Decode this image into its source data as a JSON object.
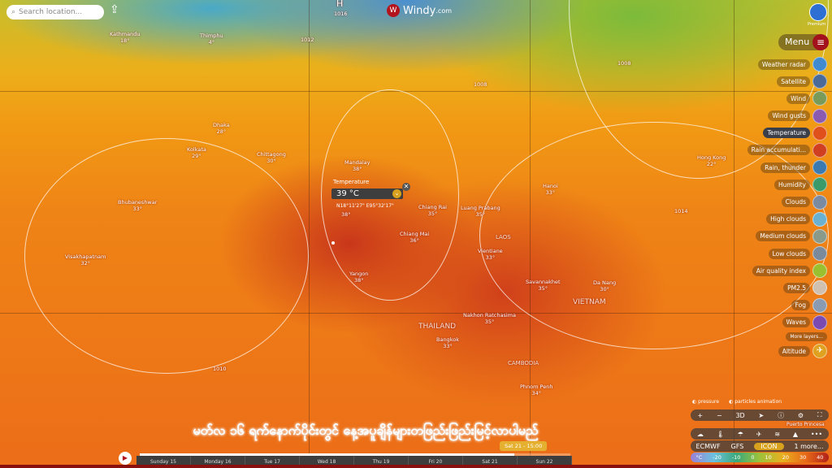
{
  "search": {
    "placeholder": "Search location..."
  },
  "logo": {
    "name": "Windy",
    "suffix": ".com"
  },
  "account": {
    "badge": "Premium"
  },
  "menu": {
    "label": "Menu"
  },
  "layers": [
    {
      "label": "Weather radar",
      "color": "#3f8ad0"
    },
    {
      "label": "Satellite",
      "color": "#4a6a9a"
    },
    {
      "label": "Wind",
      "color": "#7a9a5a"
    },
    {
      "label": "Wind gusts",
      "color": "#8a5ab0"
    },
    {
      "label": "Temperature",
      "color": "#e0501a",
      "active": true
    },
    {
      "label": "Rain accumulati...",
      "color": "#d04020"
    },
    {
      "label": "Rain, thunder",
      "color": "#3a7ab0"
    },
    {
      "label": "Humidity",
      "color": "#3a9a6a"
    },
    {
      "label": "Clouds",
      "color": "#7a8aa0"
    },
    {
      "label": "High clouds",
      "color": "#6ab0d0"
    },
    {
      "label": "Medium clouds",
      "color": "#8a9a8a"
    },
    {
      "label": "Low clouds",
      "color": "#7a8a9a"
    },
    {
      "label": "Air quality index",
      "color": "#9ac030"
    },
    {
      "label": "PM2.5",
      "color": "#d0c0b0"
    },
    {
      "label": "Fog",
      "color": "#8a9ab0"
    },
    {
      "label": "Waves",
      "color": "#7a4ab0"
    }
  ],
  "more_layers": "More layers...",
  "altitude": "Altitude",
  "popup": {
    "label": "Temperature",
    "value": "39 °C",
    "coords": "N18°11'27\" E95°32'17\"",
    "nearby": "38°"
  },
  "pressure_labels": [
    "1016",
    "1012",
    "1008",
    "1010",
    "1014",
    "1008"
  ],
  "high_label": "H",
  "cities": [
    {
      "name": "Thimphu",
      "temp": "4°"
    },
    {
      "name": "Kathmandu",
      "temp": "18°"
    },
    {
      "name": "Dhaka",
      "temp": "28°"
    },
    {
      "name": "Kolkata",
      "temp": "29°"
    },
    {
      "name": "Chittagong",
      "temp": "30°"
    },
    {
      "name": "Mandalay",
      "temp": "38°"
    },
    {
      "name": "Yangon",
      "temp": "38°"
    },
    {
      "name": "Chiang Mai",
      "temp": "36°"
    },
    {
      "name": "Chiang Rai",
      "temp": "35°"
    },
    {
      "name": "Luang Prabang",
      "temp": "35°"
    },
    {
      "name": "Vientiane",
      "temp": "33°"
    },
    {
      "name": "Hanoi",
      "temp": "33°"
    },
    {
      "name": "Nakhon Ratchasima",
      "temp": "35°"
    },
    {
      "name": "Bangkok",
      "temp": "33°"
    },
    {
      "name": "Phnom Penh",
      "temp": "34°"
    },
    {
      "name": "Hong Kong",
      "temp": "22°"
    },
    {
      "name": "Visakhapatnam",
      "temp": "32°"
    },
    {
      "name": "Bhubaneshwar",
      "temp": "33°"
    },
    {
      "name": "Savannakhet",
      "temp": "35°"
    },
    {
      "name": "Da Nang",
      "temp": "30°"
    }
  ],
  "countries": [
    "THAILAND",
    "CAMBODIA",
    "VIETNAM",
    "LAOS"
  ],
  "subtitle": "မတ်လ ၁၆ ရက်နောက်ပိုင်းတွင် နေ့အပူချိန်များတဖြည်းဖြည်းမြင့်လာပါမည်",
  "timeline": {
    "current": "Sat 21 - 15:00",
    "progress": 0.87,
    "days": [
      "Sunday 15",
      "Monday 16",
      "Tue 17",
      "Wed 18",
      "Thu 19",
      "Fri 20",
      "Sat 21",
      "Sun 22"
    ]
  },
  "toggles": {
    "pressure": "pressure",
    "particles": "particles animation"
  },
  "controls": {
    "zoom_in": "+",
    "zoom_out": "−",
    "view3d": "3D",
    "more": "•••",
    "place": "Puerto Princesa"
  },
  "models": [
    {
      "label": "ECMWF"
    },
    {
      "label": "GFS"
    },
    {
      "label": "ICON",
      "selected": true
    },
    {
      "label": "1 more..."
    }
  ],
  "scale": {
    "unit": "°C",
    "ticks": [
      "-20",
      "-10",
      "0",
      "10",
      "20",
      "30",
      "40"
    ]
  }
}
